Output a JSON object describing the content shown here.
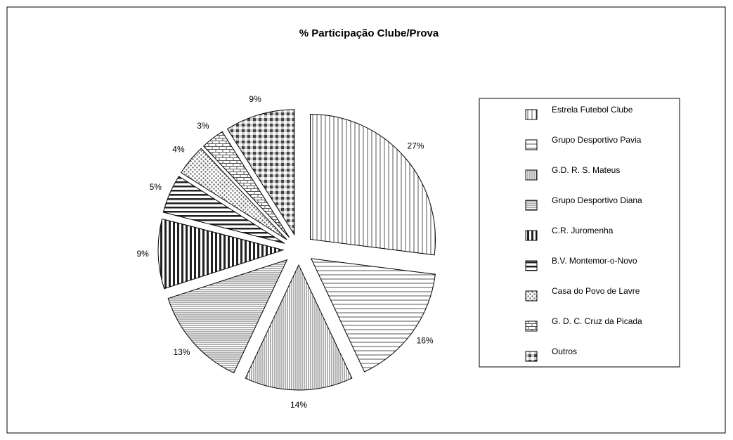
{
  "chart_data": {
    "type": "pie",
    "title": "% Participação Clube/Prova",
    "categories": [
      "Estrela Futebol Clube",
      "Grupo Desportivo Pavia",
      "G.D. R. S. Mateus",
      "Grupo Desportivo Diana",
      "C.R. Juromenha",
      "B.V. Montemor-o-Novo",
      "Casa do Povo de Lavre",
      "G. D. C. Cruz da Picada",
      "Outros"
    ],
    "values": [
      27,
      16,
      14,
      13,
      9,
      5,
      4,
      3,
      9
    ],
    "value_labels": [
      "27%",
      "16%",
      "14%",
      "13%",
      "9%",
      "5%",
      "4%",
      "3%",
      "9%"
    ],
    "legend": "right"
  }
}
